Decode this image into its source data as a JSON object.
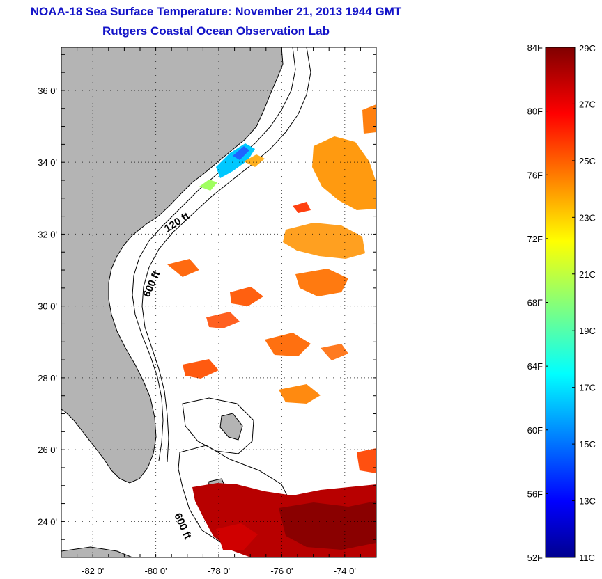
{
  "header": {
    "title": "NOAA-18 Sea Surface Temperature:  November 21, 2013 1944 GMT",
    "subtitle": "Rutgers Coastal Ocean Observation Lab"
  },
  "map": {
    "lon_range": [
      -83,
      -73
    ],
    "lat_range": [
      23,
      37.2
    ],
    "lon_ticks": [
      {
        "value": -82,
        "label": "-82 0'"
      },
      {
        "value": -80,
        "label": "-80 0'"
      },
      {
        "value": -78,
        "label": "-78 0'"
      },
      {
        "value": -76,
        "label": "-76 0'"
      },
      {
        "value": -74,
        "label": "-74 0'"
      }
    ],
    "lat_ticks": [
      {
        "value": 24,
        "label": "24 0'"
      },
      {
        "value": 26,
        "label": "26 0'"
      },
      {
        "value": 28,
        "label": "28 0'"
      },
      {
        "value": 30,
        "label": "30 0'"
      },
      {
        "value": 32,
        "label": "32 0'"
      },
      {
        "value": 34,
        "label": "34 0'"
      },
      {
        "value": 36,
        "label": "36 0'"
      }
    ],
    "contour_labels": [
      "120 ft",
      "600 ft",
      "600 ft"
    ],
    "grid": true,
    "land_color": "#b4b4b4"
  },
  "colorbar": {
    "range_c": [
      11,
      29
    ],
    "range_f": [
      52,
      84
    ],
    "fahrenheit_ticks": [
      "52F",
      "56F",
      "60F",
      "64F",
      "68F",
      "72F",
      "76F",
      "80F",
      "84F"
    ],
    "celsius_ticks": [
      "11C",
      "13C",
      "15C",
      "17C",
      "19C",
      "21C",
      "23C",
      "25C",
      "27C",
      "29C"
    ],
    "colormap": "jet"
  }
}
